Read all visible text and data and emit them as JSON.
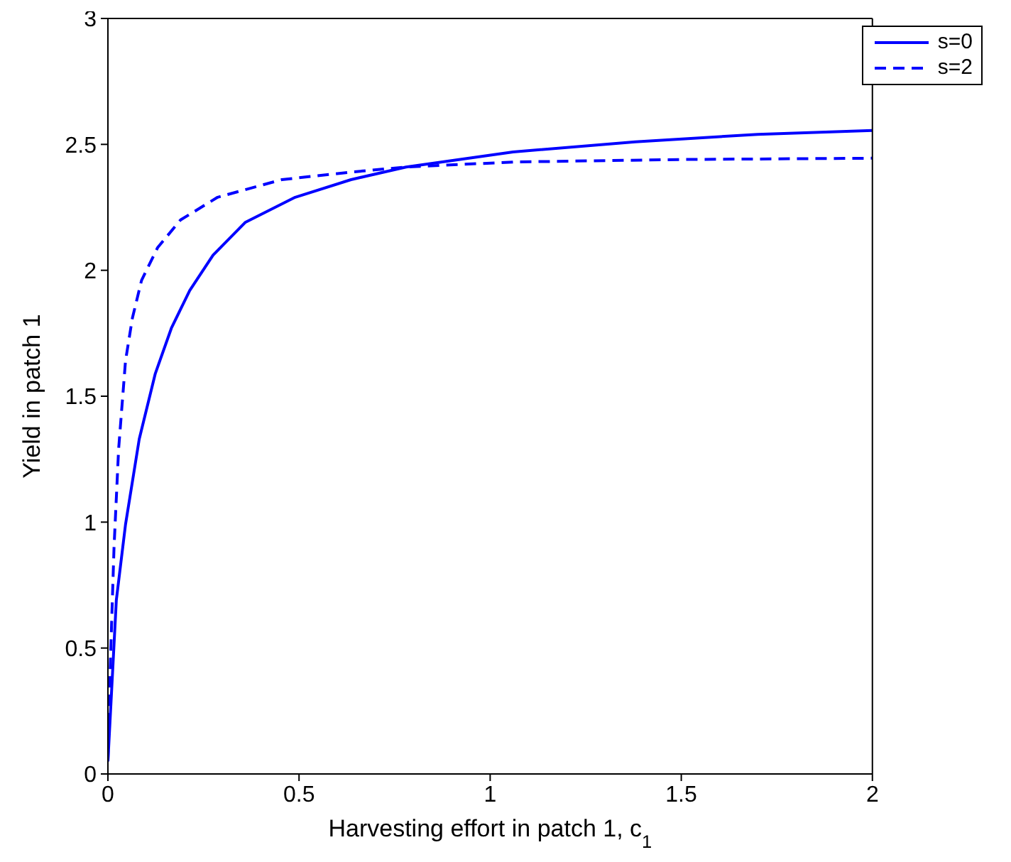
{
  "chart_data": {
    "type": "line",
    "xlabel": "Harvesting effort in patch 1, c$_{1}$",
    "ylabel": "Yield in patch 1",
    "xlim": [
      0,
      2
    ],
    "xticks": [
      0,
      0.5,
      1,
      1.5,
      2
    ],
    "ylim": [
      0,
      3
    ],
    "yticks": [
      0,
      0.5,
      1,
      1.5,
      2,
      2.5,
      3
    ],
    "grid": false,
    "legend": "top right",
    "marker": "none",
    "series": [
      {
        "name": "s=0",
        "color": "#0000ff",
        "line_style": "solid",
        "x": [
          0,
          0.01,
          0.022,
          0.046,
          0.082,
          0.124,
          0.166,
          0.214,
          0.275,
          0.359,
          0.49,
          0.636,
          0.78,
          1.06,
          1.38,
          1.7,
          2
        ],
        "values": [
          0.05,
          0.34,
          0.69,
          0.99,
          1.33,
          1.59,
          1.77,
          1.92,
          2.06,
          2.19,
          2.29,
          2.36,
          2.41,
          2.47,
          2.51,
          2.54,
          2.555
        ]
      },
      {
        "name": "s=2",
        "color": "#0000ff",
        "line_style": "dashed",
        "x": [
          0,
          0.007,
          0.016,
          0.028,
          0.046,
          0.064,
          0.088,
          0.13,
          0.19,
          0.287,
          0.455,
          0.636,
          0.78,
          1.06,
          1.5,
          2
        ],
        "values": [
          0.05,
          0.47,
          0.9,
          1.29,
          1.64,
          1.81,
          1.96,
          2.09,
          2.2,
          2.29,
          2.36,
          2.39,
          2.41,
          2.43,
          2.44,
          2.445
        ]
      }
    ]
  }
}
